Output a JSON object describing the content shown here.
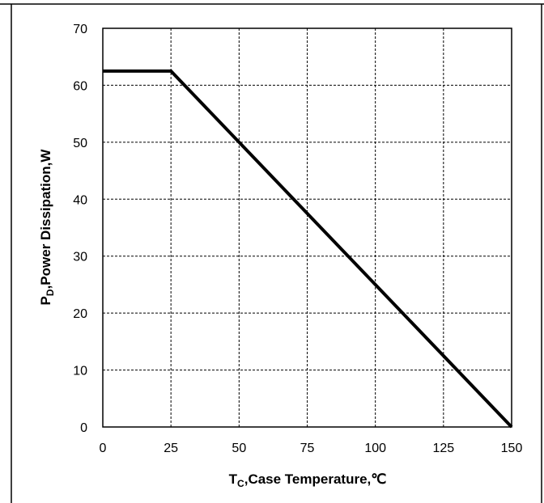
{
  "chart_data": {
    "type": "line",
    "title": "",
    "xlabel": {
      "main": "T",
      "sub": "C",
      "rest": ",Case Temperature,℃"
    },
    "ylabel": {
      "main": "P",
      "sub": "D",
      "rest": ",Power Dissipation,W"
    },
    "xlim": [
      0,
      150
    ],
    "ylim": [
      0,
      70
    ],
    "x_ticks": [
      0,
      25,
      50,
      75,
      100,
      125,
      150
    ],
    "y_ticks": [
      0,
      10,
      20,
      30,
      40,
      50,
      60,
      70
    ],
    "grid": true,
    "grid_style": "dashed",
    "line_color": "#000000",
    "series": [
      {
        "x": [
          0,
          25,
          150
        ],
        "y": [
          62.5,
          62.5,
          0
        ]
      }
    ]
  }
}
